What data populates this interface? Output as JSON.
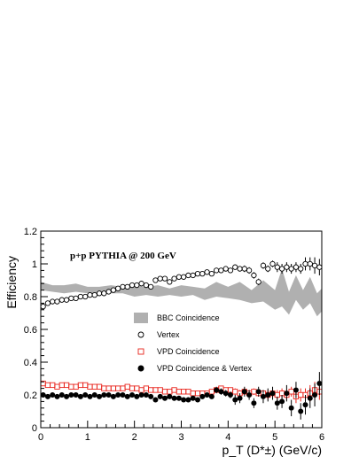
{
  "chart_data": {
    "type": "scatter",
    "annotation": "p+p PYTHIA @ 200 GeV",
    "xlabel": "p_T (D*±) (GeV/c)",
    "ylabel": "Efficiency",
    "xlim": [
      0,
      6
    ],
    "ylim": [
      0,
      1.2
    ],
    "xticks": [
      "0",
      "1",
      "2",
      "3",
      "4",
      "5",
      "6"
    ],
    "yticks": [
      "0",
      "0.2",
      "0.4",
      "0.6",
      "0.8",
      "1",
      "1.2"
    ],
    "grid": false,
    "legend_position": "center",
    "series": [
      {
        "name": "BBC Coincidence",
        "style": "band",
        "color": "#b0b0b0",
        "x": [
          0.0,
          0.25,
          0.5,
          0.75,
          1.0,
          1.25,
          1.5,
          1.75,
          2.0,
          2.25,
          2.5,
          2.75,
          3.0,
          3.25,
          3.5,
          3.75,
          4.0,
          4.25,
          4.5,
          4.75,
          5.0,
          5.15,
          5.3,
          5.45,
          5.6,
          5.75,
          5.9,
          6.0
        ],
        "low": [
          0.84,
          0.83,
          0.82,
          0.83,
          0.82,
          0.81,
          0.82,
          0.82,
          0.8,
          0.81,
          0.8,
          0.81,
          0.8,
          0.81,
          0.78,
          0.8,
          0.79,
          0.78,
          0.76,
          0.77,
          0.72,
          0.74,
          0.69,
          0.78,
          0.72,
          0.76,
          0.68,
          0.71
        ],
        "high": [
          0.89,
          0.87,
          0.87,
          0.88,
          0.86,
          0.86,
          0.87,
          0.86,
          0.87,
          0.86,
          0.87,
          0.85,
          0.87,
          0.86,
          0.85,
          0.89,
          0.86,
          0.89,
          0.84,
          0.9,
          0.84,
          0.97,
          0.83,
          0.93,
          0.84,
          0.92,
          0.82,
          0.85
        ]
      },
      {
        "name": "Vertex",
        "style": "open-circle",
        "color": "#000000",
        "x": [
          0.05,
          0.15,
          0.25,
          0.35,
          0.45,
          0.55,
          0.65,
          0.75,
          0.85,
          0.95,
          1.05,
          1.15,
          1.25,
          1.35,
          1.45,
          1.55,
          1.65,
          1.75,
          1.85,
          1.95,
          2.05,
          2.15,
          2.25,
          2.35,
          2.45,
          2.55,
          2.65,
          2.75,
          2.85,
          2.95,
          3.05,
          3.15,
          3.25,
          3.35,
          3.45,
          3.55,
          3.65,
          3.75,
          3.85,
          3.95,
          4.05,
          4.15,
          4.25,
          4.35,
          4.45,
          4.55,
          4.65,
          4.75,
          4.85,
          4.95,
          5.05,
          5.15,
          5.25,
          5.35,
          5.45,
          5.55,
          5.65,
          5.75,
          5.85,
          5.95
        ],
        "y": [
          0.74,
          0.76,
          0.77,
          0.77,
          0.78,
          0.78,
          0.79,
          0.79,
          0.8,
          0.8,
          0.81,
          0.81,
          0.82,
          0.82,
          0.83,
          0.84,
          0.85,
          0.86,
          0.86,
          0.87,
          0.87,
          0.88,
          0.87,
          0.86,
          0.9,
          0.91,
          0.91,
          0.89,
          0.91,
          0.92,
          0.92,
          0.93,
          0.93,
          0.94,
          0.94,
          0.95,
          0.94,
          0.96,
          0.96,
          0.97,
          0.96,
          0.98,
          0.97,
          0.97,
          0.96,
          0.93,
          0.89,
          0.99,
          0.97,
          1.0,
          0.98,
          0.97,
          0.98,
          0.97,
          0.98,
          0.97,
          1.0,
          1.0,
          0.99,
          0.98
        ],
        "err": [
          0.02,
          0.01,
          0.01,
          0.01,
          0.01,
          0.01,
          0.01,
          0.01,
          0.01,
          0.01,
          0.01,
          0.01,
          0.01,
          0.01,
          0.01,
          0.01,
          0.01,
          0.01,
          0.01,
          0.01,
          0.01,
          0.01,
          0.01,
          0.01,
          0.01,
          0.01,
          0.01,
          0.01,
          0.01,
          0.01,
          0.01,
          0.01,
          0.01,
          0.01,
          0.01,
          0.01,
          0.01,
          0.01,
          0.01,
          0.01,
          0.01,
          0.01,
          0.01,
          0.02,
          0.02,
          0.02,
          0.02,
          0.02,
          0.02,
          0.02,
          0.03,
          0.03,
          0.03,
          0.03,
          0.03,
          0.03,
          0.04,
          0.04,
          0.05,
          0.05
        ]
      },
      {
        "name": "VPD Coincidence",
        "style": "open-square",
        "color": "#e8241c",
        "x": [
          0.05,
          0.15,
          0.25,
          0.35,
          0.45,
          0.55,
          0.65,
          0.75,
          0.85,
          0.95,
          1.05,
          1.15,
          1.25,
          1.35,
          1.45,
          1.55,
          1.65,
          1.75,
          1.85,
          1.95,
          2.05,
          2.15,
          2.25,
          2.35,
          2.45,
          2.55,
          2.65,
          2.75,
          2.85,
          2.95,
          3.05,
          3.15,
          3.25,
          3.35,
          3.45,
          3.55,
          3.65,
          3.75,
          3.85,
          3.95,
          4.05,
          4.15,
          4.25,
          4.35,
          4.45,
          4.55,
          4.65,
          4.75,
          4.85,
          4.95,
          5.05,
          5.15,
          5.25,
          5.35,
          5.45,
          5.55,
          5.65,
          5.75,
          5.85,
          5.95
        ],
        "y": [
          0.27,
          0.26,
          0.26,
          0.25,
          0.26,
          0.26,
          0.25,
          0.25,
          0.26,
          0.26,
          0.25,
          0.25,
          0.25,
          0.24,
          0.24,
          0.24,
          0.24,
          0.24,
          0.25,
          0.24,
          0.24,
          0.23,
          0.24,
          0.23,
          0.23,
          0.23,
          0.22,
          0.22,
          0.23,
          0.22,
          0.22,
          0.22,
          0.21,
          0.21,
          0.21,
          0.21,
          0.22,
          0.23,
          0.24,
          0.23,
          0.23,
          0.22,
          0.21,
          0.22,
          0.21,
          0.22,
          0.21,
          0.21,
          0.2,
          0.21,
          0.2,
          0.21,
          0.2,
          0.22,
          0.19,
          0.2,
          0.2,
          0.21,
          0.23,
          0.22
        ],
        "err": [
          0.01,
          0.01,
          0.01,
          0.01,
          0.01,
          0.01,
          0.01,
          0.01,
          0.01,
          0.01,
          0.01,
          0.01,
          0.01,
          0.01,
          0.01,
          0.01,
          0.01,
          0.01,
          0.01,
          0.01,
          0.01,
          0.01,
          0.01,
          0.01,
          0.01,
          0.01,
          0.01,
          0.01,
          0.01,
          0.01,
          0.01,
          0.01,
          0.01,
          0.01,
          0.01,
          0.01,
          0.01,
          0.01,
          0.01,
          0.01,
          0.01,
          0.02,
          0.02,
          0.02,
          0.02,
          0.02,
          0.02,
          0.02,
          0.03,
          0.03,
          0.03,
          0.03,
          0.03,
          0.03,
          0.04,
          0.04,
          0.04,
          0.05,
          0.05,
          0.05
        ]
      },
      {
        "name": "VPD Coincidence & Vertex",
        "style": "filled-circle",
        "color": "#000000",
        "x": [
          0.05,
          0.15,
          0.25,
          0.35,
          0.45,
          0.55,
          0.65,
          0.75,
          0.85,
          0.95,
          1.05,
          1.15,
          1.25,
          1.35,
          1.45,
          1.55,
          1.65,
          1.75,
          1.85,
          1.95,
          2.05,
          2.15,
          2.25,
          2.35,
          2.45,
          2.55,
          2.65,
          2.75,
          2.85,
          2.95,
          3.05,
          3.15,
          3.25,
          3.35,
          3.45,
          3.55,
          3.65,
          3.75,
          3.85,
          3.95,
          4.05,
          4.15,
          4.25,
          4.35,
          4.45,
          4.55,
          4.65,
          4.75,
          4.85,
          4.95,
          5.05,
          5.15,
          5.25,
          5.35,
          5.45,
          5.55,
          5.65,
          5.75,
          5.85,
          5.95
        ],
        "y": [
          0.2,
          0.19,
          0.2,
          0.19,
          0.2,
          0.19,
          0.2,
          0.2,
          0.19,
          0.2,
          0.19,
          0.2,
          0.19,
          0.2,
          0.2,
          0.19,
          0.2,
          0.2,
          0.19,
          0.2,
          0.19,
          0.2,
          0.2,
          0.19,
          0.17,
          0.19,
          0.18,
          0.19,
          0.18,
          0.18,
          0.17,
          0.17,
          0.18,
          0.17,
          0.19,
          0.2,
          0.19,
          0.23,
          0.22,
          0.21,
          0.2,
          0.17,
          0.18,
          0.22,
          0.2,
          0.15,
          0.22,
          0.19,
          0.2,
          0.21,
          0.15,
          0.16,
          0.21,
          0.12,
          0.23,
          0.1,
          0.14,
          0.18,
          0.2,
          0.27
        ],
        "err": [
          0.01,
          0.01,
          0.01,
          0.01,
          0.01,
          0.01,
          0.01,
          0.01,
          0.01,
          0.01,
          0.01,
          0.01,
          0.01,
          0.01,
          0.01,
          0.01,
          0.01,
          0.01,
          0.01,
          0.01,
          0.01,
          0.01,
          0.01,
          0.01,
          0.01,
          0.01,
          0.01,
          0.01,
          0.01,
          0.01,
          0.01,
          0.01,
          0.01,
          0.01,
          0.01,
          0.01,
          0.01,
          0.02,
          0.02,
          0.02,
          0.02,
          0.03,
          0.03,
          0.03,
          0.03,
          0.03,
          0.03,
          0.04,
          0.04,
          0.04,
          0.04,
          0.04,
          0.05,
          0.05,
          0.05,
          0.05,
          0.06,
          0.06,
          0.07,
          0.07
        ]
      }
    ]
  }
}
